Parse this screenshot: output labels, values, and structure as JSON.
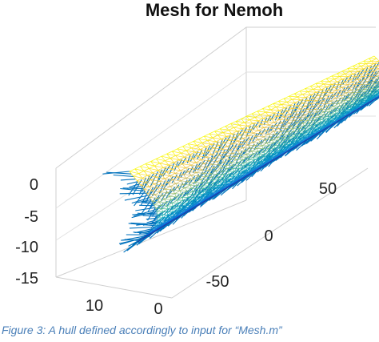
{
  "chart_data": {
    "type": "3d-mesh",
    "title": "Mesh for Nemoh",
    "x_ticks": [
      "10",
      "0"
    ],
    "y_ticks": [
      "-50",
      "0",
      "50"
    ],
    "z_ticks": [
      "0",
      "-5",
      "-10",
      "-15"
    ],
    "x_range": [
      0,
      15
    ],
    "y_range": [
      -80,
      80
    ],
    "z_range": [
      -15,
      0
    ],
    "grid": true,
    "colormap": "parula",
    "normals_color": "#0072bd",
    "series": [
      {
        "kind": "hull-surface-mesh",
        "colored_by": "z"
      },
      {
        "kind": "panel-normal-vectors"
      }
    ]
  },
  "caption": "Figure 3: A hull defined accordingly to input for “Mesh.m”"
}
